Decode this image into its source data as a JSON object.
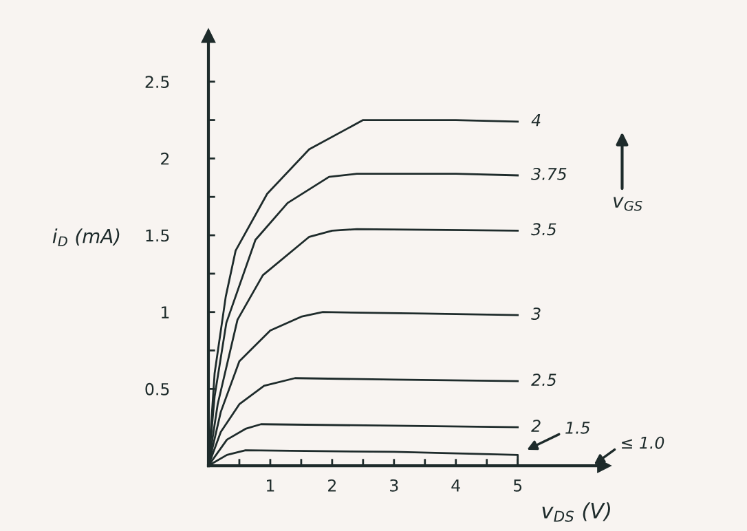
{
  "chart_data": {
    "type": "line",
    "xlabel": "v$_{DS}$ (V)",
    "ylabel": "i$_{D}$ (mA)",
    "legend": false,
    "grid": false,
    "marker": "none",
    "line_style": "solid",
    "xlim": [
      0,
      6.4
    ],
    "ylim": [
      0,
      2.8
    ],
    "xticks": [
      {
        "value": 0.5,
        "label": null
      },
      1,
      {
        "value": 1.5,
        "label": null
      },
      2,
      {
        "value": 2.5,
        "label": null
      },
      3,
      {
        "value": 3.5,
        "label": null
      },
      4,
      {
        "value": 4.5,
        "label": null
      },
      5
    ],
    "yticks": [
      0.5,
      {
        "value": 0.75,
        "label": null
      },
      1,
      {
        "value": 1.25,
        "label": null
      },
      1.5,
      {
        "value": 1.75,
        "label": null
      },
      2,
      {
        "value": 2.25,
        "label": null
      },
      2.5
    ],
    "series": [
      {
        "name": "4",
        "color": "#1e2b2b",
        "x": [
          0,
          0.1,
          0.28,
          0.44,
          0.95,
          1.63,
          2.5,
          4.0,
          5.0
        ],
        "values": [
          0,
          0.6,
          1.1,
          1.4,
          1.77,
          2.06,
          2.25,
          2.25,
          2.24
        ]
      },
      {
        "name": "3.75",
        "color": "#1e2b2b",
        "x": [
          0,
          0.1,
          0.29,
          0.76,
          1.28,
          1.95,
          2.4,
          4.0,
          5.0
        ],
        "values": [
          0,
          0.45,
          0.93,
          1.47,
          1.71,
          1.88,
          1.9,
          1.9,
          1.89
        ]
      },
      {
        "name": "3.5",
        "color": "#1e2b2b",
        "x": [
          0,
          0.15,
          0.47,
          0.88,
          1.63,
          2.0,
          2.4,
          5.0
        ],
        "values": [
          0,
          0.4,
          0.95,
          1.24,
          1.49,
          1.53,
          1.54,
          1.53
        ]
      },
      {
        "name": "3",
        "color": "#1e2b2b",
        "x": [
          0,
          0.2,
          0.5,
          1.0,
          1.5,
          1.85,
          3.5,
          5.0
        ],
        "values": [
          0,
          0.35,
          0.68,
          0.88,
          0.97,
          1.0,
          0.99,
          0.98
        ]
      },
      {
        "name": "2.5",
        "color": "#1e2b2b",
        "x": [
          0,
          0.2,
          0.5,
          0.9,
          1.4,
          3.0,
          5.0
        ],
        "values": [
          0,
          0.22,
          0.4,
          0.52,
          0.57,
          0.56,
          0.55
        ]
      },
      {
        "name": "2",
        "color": "#1e2b2b",
        "x": [
          0,
          0.3,
          0.6,
          0.85,
          3.0,
          5.0
        ],
        "values": [
          0,
          0.17,
          0.24,
          0.27,
          0.26,
          0.25
        ]
      },
      {
        "color": "#1e2b2b",
        "x": [
          0,
          0.3,
          0.6,
          3.0,
          5.0,
          5.0
        ],
        "values": [
          0,
          0.07,
          0.1,
          0.09,
          0.07,
          0
        ]
      }
    ],
    "annotations": [
      "1.5",
      "≤ 1.0",
      "v$_{GS}$"
    ]
  }
}
